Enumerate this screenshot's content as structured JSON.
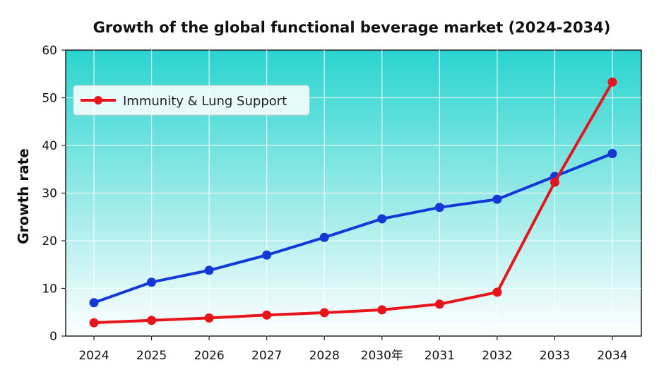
{
  "chart_data": {
    "type": "line",
    "title": "Growth of the global functional beverage market (2024-2034)",
    "xlabel": "",
    "ylabel": "Growth rate",
    "categories": [
      "2024",
      "2025",
      "2026",
      "2027",
      "2028",
      "2030年",
      "2031",
      "2032",
      "2033",
      "2034"
    ],
    "ylim": [
      0,
      60
    ],
    "yticks": [
      "0",
      "10",
      "20",
      "30",
      "40",
      "50",
      "60"
    ],
    "grid": true,
    "legend_position": "top-left",
    "series": [
      {
        "name": "",
        "color": "#1238d8",
        "values": [
          7.0,
          11.3,
          13.8,
          17.0,
          20.7,
          24.6,
          27.0,
          28.7,
          33.5,
          38.3
        ]
      },
      {
        "name": "Immunity & Lung Support",
        "color": "#e8141c",
        "values": [
          2.8,
          3.3,
          3.8,
          4.4,
          4.9,
          5.5,
          6.7,
          9.2,
          32.3,
          53.3
        ]
      }
    ],
    "background_gradient": [
      "#2ad4cf",
      "#ffffff"
    ]
  }
}
